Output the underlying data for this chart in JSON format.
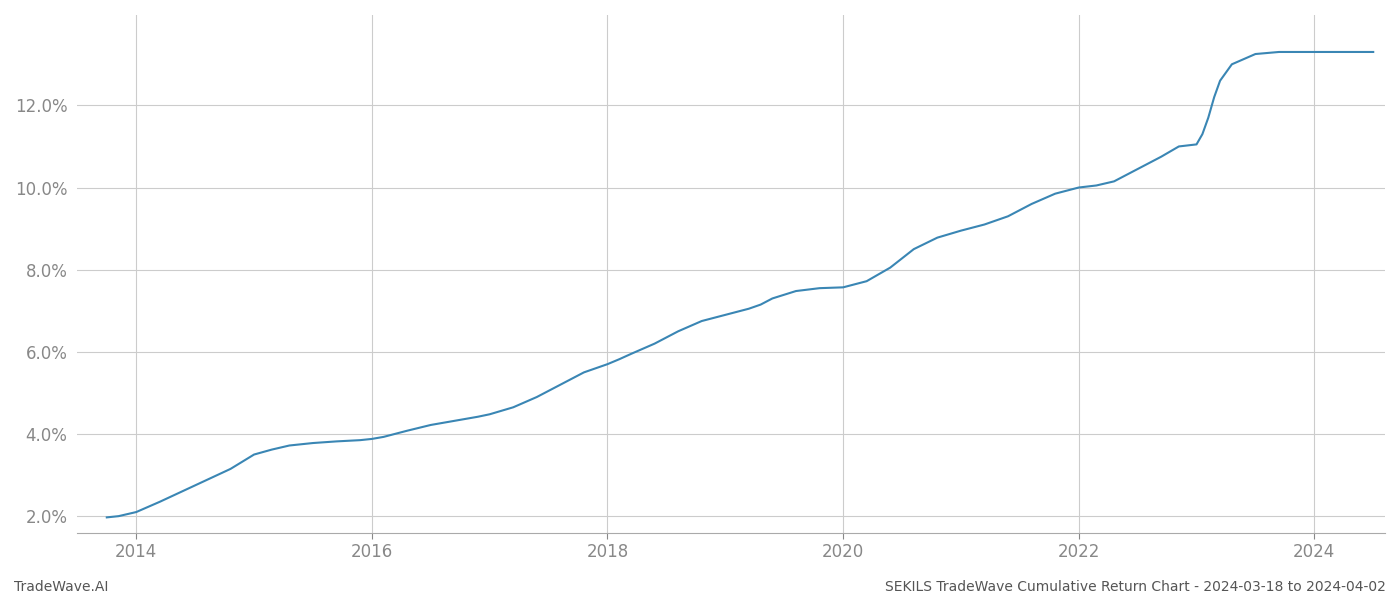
{
  "title": "",
  "footer_left": "TradeWave.AI",
  "footer_right": "SEKILS TradeWave Cumulative Return Chart - 2024-03-18 to 2024-04-02",
  "line_color": "#3a86b4",
  "line_width": 1.5,
  "background_color": "#ffffff",
  "grid_color": "#cccccc",
  "x_ticks": [
    2014,
    2016,
    2018,
    2020,
    2022,
    2024
  ],
  "y_ticks": [
    2.0,
    4.0,
    6.0,
    8.0,
    10.0,
    12.0
  ],
  "ylim": [
    1.6,
    14.2
  ],
  "xlim": [
    2013.5,
    2024.6
  ],
  "x_data": [
    2013.75,
    2013.85,
    2014.0,
    2014.2,
    2014.5,
    2014.8,
    2015.0,
    2015.15,
    2015.3,
    2015.5,
    2015.7,
    2015.9,
    2016.0,
    2016.1,
    2016.3,
    2016.5,
    2016.7,
    2016.9,
    2017.0,
    2017.2,
    2017.4,
    2017.6,
    2017.8,
    2018.0,
    2018.1,
    2018.2,
    2018.4,
    2018.6,
    2018.8,
    2019.0,
    2019.2,
    2019.3,
    2019.4,
    2019.6,
    2019.8,
    2020.0,
    2020.2,
    2020.4,
    2020.6,
    2020.8,
    2021.0,
    2021.2,
    2021.4,
    2021.6,
    2021.8,
    2022.0,
    2022.15,
    2022.3,
    2022.5,
    2022.7,
    2022.85,
    2023.0,
    2023.05,
    2023.1,
    2023.15,
    2023.2,
    2023.3,
    2023.5,
    2023.7,
    2023.9,
    2024.0,
    2024.15,
    2024.3,
    2024.5
  ],
  "y_data": [
    1.97,
    2.0,
    2.1,
    2.35,
    2.75,
    3.15,
    3.5,
    3.62,
    3.72,
    3.78,
    3.82,
    3.85,
    3.88,
    3.93,
    4.08,
    4.22,
    4.32,
    4.42,
    4.48,
    4.65,
    4.9,
    5.2,
    5.5,
    5.7,
    5.82,
    5.95,
    6.2,
    6.5,
    6.75,
    6.9,
    7.05,
    7.15,
    7.3,
    7.48,
    7.55,
    7.57,
    7.72,
    8.05,
    8.5,
    8.78,
    8.95,
    9.1,
    9.3,
    9.6,
    9.85,
    10.0,
    10.05,
    10.15,
    10.45,
    10.75,
    11.0,
    11.05,
    11.3,
    11.7,
    12.2,
    12.6,
    13.0,
    13.25,
    13.3,
    13.3,
    13.3,
    13.3,
    13.3,
    13.3
  ],
  "tick_color": "#888888",
  "tick_fontsize": 12,
  "footer_fontsize": 10
}
